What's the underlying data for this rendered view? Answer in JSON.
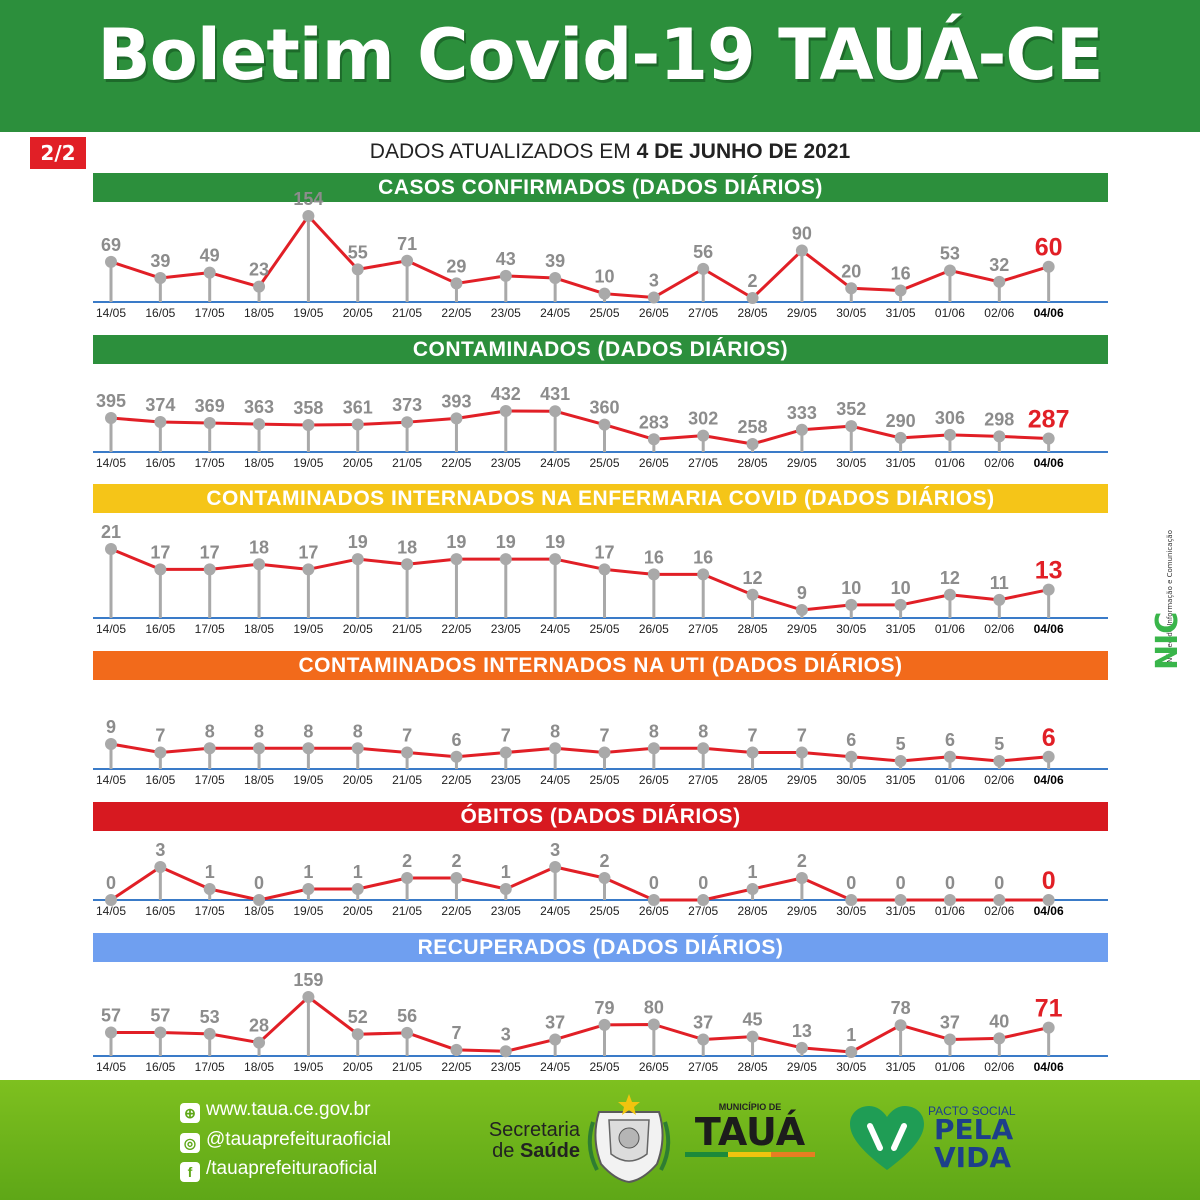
{
  "header": {
    "title": "Boletim Covid-19 TAUÁ-CE"
  },
  "page_badge": "2/2",
  "updated": {
    "prefix": "DADOS ATUALIZADOS EM ",
    "date": "4 DE JUNHO DE 2021"
  },
  "colors": {
    "header_green": "#2c8f3c",
    "band_green": "#2c8f3c",
    "band_yellow": "#f5c518",
    "band_orange": "#f26a1b",
    "band_red": "#d71920",
    "band_blue": "#6f9ff0",
    "line_red": "#e11f26",
    "marker_gray": "#a9a9a9",
    "axis_blue": "#3a7bc8",
    "footer_green": "#6fb51c"
  },
  "chart_data": [
    {
      "type": "line",
      "title": "CASOS CONFIRMADOS  (DADOS DIÁRIOS)",
      "band_color": "#2c8f3c",
      "categories": [
        "14/05",
        "16/05",
        "17/05",
        "18/05",
        "19/05",
        "20/05",
        "21/05",
        "22/05",
        "23/05",
        "24/05",
        "25/05",
        "26/05",
        "27/05",
        "28/05",
        "29/05",
        "30/05",
        "31/05",
        "01/06",
        "02/06",
        "04/06"
      ],
      "values": [
        69,
        39,
        49,
        23,
        154,
        55,
        71,
        29,
        43,
        39,
        10,
        3,
        56,
        2,
        90,
        20,
        16,
        53,
        32,
        60
      ]
    },
    {
      "type": "line",
      "title": "CONTAMINADOS  (DADOS DIÁRIOS)",
      "band_color": "#2c8f3c",
      "categories": [
        "14/05",
        "16/05",
        "17/05",
        "18/05",
        "19/05",
        "20/05",
        "21/05",
        "22/05",
        "23/05",
        "24/05",
        "25/05",
        "26/05",
        "27/05",
        "28/05",
        "29/05",
        "30/05",
        "31/05",
        "01/06",
        "02/06",
        "04/06"
      ],
      "values": [
        395,
        374,
        369,
        363,
        358,
        361,
        373,
        393,
        432,
        431,
        360,
        283,
        302,
        258,
        333,
        352,
        290,
        306,
        298,
        287
      ]
    },
    {
      "type": "line",
      "title": "CONTAMINADOS INTERNADOS NA ENFERMARIA COVID  (DADOS DIÁRIOS)",
      "band_color": "#f5c518",
      "categories": [
        "14/05",
        "16/05",
        "17/05",
        "18/05",
        "19/05",
        "20/05",
        "21/05",
        "22/05",
        "23/05",
        "24/05",
        "25/05",
        "26/05",
        "27/05",
        "28/05",
        "29/05",
        "30/05",
        "31/05",
        "01/06",
        "02/06",
        "04/06"
      ],
      "values": [
        21,
        17,
        17,
        18,
        17,
        19,
        18,
        19,
        19,
        19,
        17,
        16,
        16,
        12,
        9,
        10,
        10,
        12,
        11,
        13
      ]
    },
    {
      "type": "line",
      "title": "CONTAMINADOS INTERNADOS NA UTI  (DADOS DIÁRIOS)",
      "band_color": "#f26a1b",
      "categories": [
        "14/05",
        "16/05",
        "17/05",
        "18/05",
        "19/05",
        "20/05",
        "21/05",
        "22/05",
        "23/05",
        "24/05",
        "25/05",
        "26/05",
        "27/05",
        "28/05",
        "29/05",
        "30/05",
        "31/05",
        "01/06",
        "02/06",
        "04/06"
      ],
      "values": [
        9,
        7,
        8,
        8,
        8,
        8,
        7,
        6,
        7,
        8,
        7,
        8,
        8,
        7,
        7,
        6,
        5,
        6,
        5,
        6
      ]
    },
    {
      "type": "line",
      "title": "ÓBITOS  (DADOS DIÁRIOS)",
      "band_color": "#d71920",
      "categories": [
        "14/05",
        "16/05",
        "17/05",
        "18/05",
        "19/05",
        "20/05",
        "21/05",
        "22/05",
        "23/05",
        "24/05",
        "25/05",
        "26/05",
        "27/05",
        "28/05",
        "29/05",
        "30/05",
        "31/05",
        "01/06",
        "02/06",
        "04/06"
      ],
      "values": [
        0,
        3,
        1,
        0,
        1,
        1,
        2,
        2,
        1,
        3,
        2,
        0,
        0,
        1,
        2,
        0,
        0,
        0,
        0,
        0
      ]
    },
    {
      "type": "line",
      "title": "RECUPERADOS (DADOS DIÁRIOS)",
      "band_color": "#6f9ff0",
      "categories": [
        "14/05",
        "16/05",
        "17/05",
        "18/05",
        "19/05",
        "20/05",
        "21/05",
        "22/05",
        "23/05",
        "24/05",
        "25/05",
        "26/05",
        "27/05",
        "28/05",
        "29/05",
        "30/05",
        "31/05",
        "01/06",
        "02/06",
        "04/06"
      ],
      "values": [
        57,
        57,
        53,
        28,
        159,
        52,
        56,
        7,
        3,
        37,
        79,
        80,
        37,
        45,
        13,
        1,
        78,
        37,
        40,
        71
      ]
    }
  ],
  "side_logo": {
    "mark": "NIC",
    "text": "Núcleo de Informação e Comunicação"
  },
  "footer": {
    "website": "www.taua.ce.gov.br",
    "instagram": "@tauaprefeituraoficial",
    "facebook": "/tauaprefeituraoficial",
    "secretaria_line1": "Secretaria",
    "secretaria_line2a": "de ",
    "secretaria_line2b": "Saúde",
    "municipio_label": "MUNICÍPIO DE",
    "municipio_name": "TAUÁ",
    "pacto_label": "PACTO SOCIAL",
    "pacto_line1": "PELA",
    "pacto_line2": "VIDA"
  }
}
